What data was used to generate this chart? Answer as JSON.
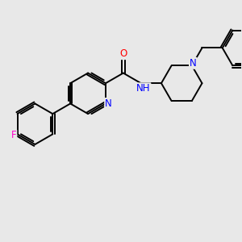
{
  "bg_color": "#e8e8e8",
  "bond_color": "#000000",
  "bond_width": 1.4,
  "atom_colors": {
    "N": "#0000ff",
    "O": "#ff0000",
    "F": "#ff00cc",
    "H": "#008800"
  },
  "font_size": 8.5,
  "figsize": [
    3.0,
    3.0
  ],
  "dpi": 100
}
